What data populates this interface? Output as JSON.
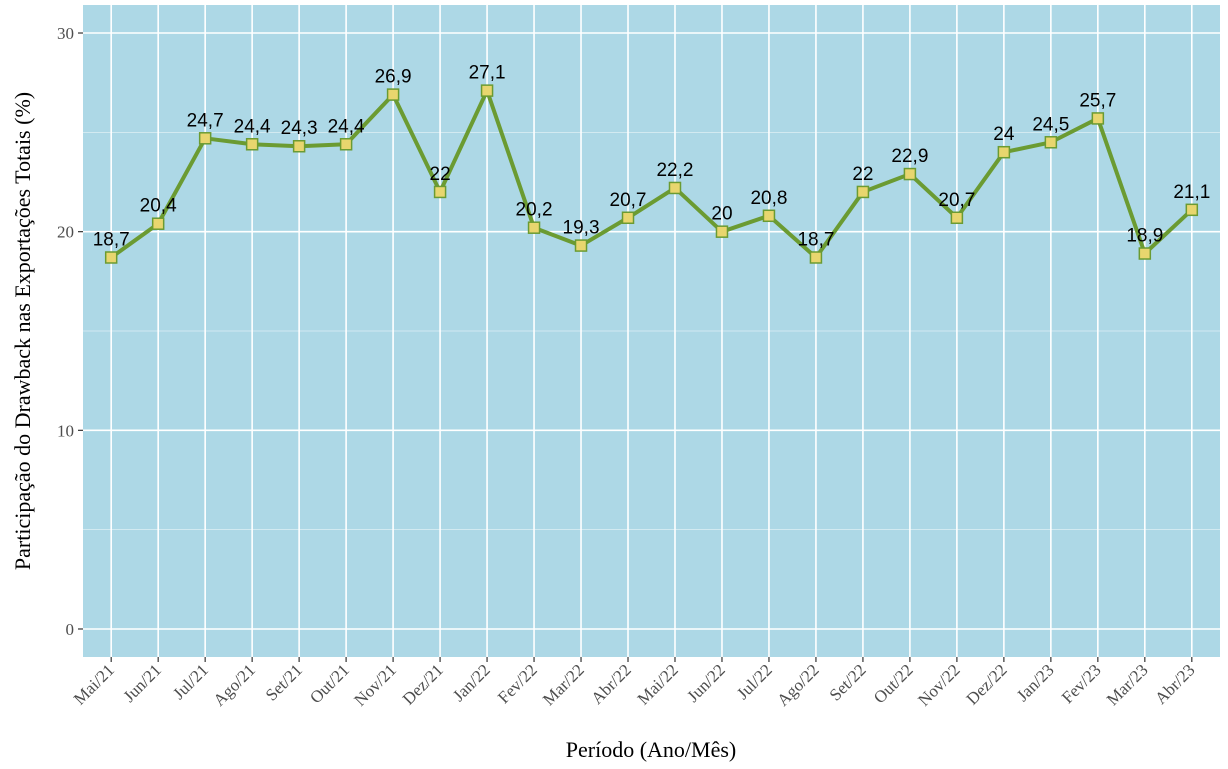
{
  "chart_data": {
    "type": "line",
    "x_label": "Período (Ano/Mês)",
    "y_label": "Participação do Drawback nas Exportações Totais (%)",
    "categories": [
      "Mai/21",
      "Jun/21",
      "Jul/21",
      "Ago/21",
      "Set/21",
      "Out/21",
      "Nov/21",
      "Dez/21",
      "Jan/22",
      "Fev/22",
      "Mar/22",
      "Abr/22",
      "Mai/22",
      "Jun/22",
      "Jul/22",
      "Ago/22",
      "Set/22",
      "Out/22",
      "Nov/22",
      "Dez/22",
      "Jan/23",
      "Fev/23",
      "Mar/23",
      "Abr/23"
    ],
    "values": [
      18.7,
      20.4,
      24.7,
      24.4,
      24.3,
      24.4,
      26.9,
      22,
      27.1,
      20.2,
      19.3,
      20.7,
      22.2,
      20,
      20.8,
      18.7,
      22,
      22.9,
      20.7,
      24,
      24.5,
      25.7,
      18.9,
      21.1
    ],
    "value_labels": [
      "18,7",
      "20,4",
      "24,7",
      "24,4",
      "24,3",
      "24,4",
      "26,9",
      "22",
      "27,1",
      "20,2",
      "19,3",
      "20,7",
      "22,2",
      "20",
      "20,8",
      "18,7",
      "22",
      "22,9",
      "20,7",
      "24",
      "24,5",
      "25,7",
      "18,9",
      "21,1"
    ],
    "color": "#6b9b32",
    "marker_fill": "#e8d66e",
    "background": "#add8e6",
    "ylim": [
      -1.41,
      31.41
    ],
    "yticks": [
      0,
      10,
      20,
      30
    ],
    "y_minor_ticks": [
      5,
      15,
      25
    ],
    "grid": true
  }
}
